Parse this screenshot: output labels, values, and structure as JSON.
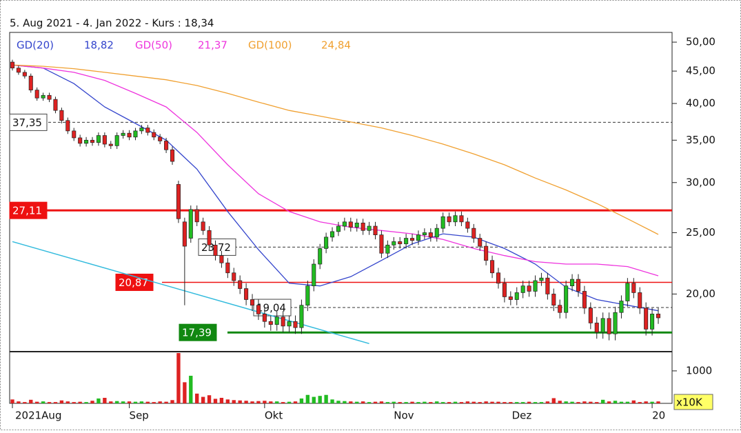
{
  "chart_data": {
    "type": "candlestick",
    "title": "5. Aug 2021 - 4. Jan 2022 - Kurs : 18,34",
    "log_scale": true,
    "categories": [
      "2021Aug",
      null,
      null,
      null,
      null,
      null,
      null,
      null,
      null,
      null,
      null,
      null,
      null,
      null,
      null,
      null,
      null,
      null,
      null,
      "Sep",
      null,
      null,
      null,
      null,
      null,
      null,
      null,
      null,
      null,
      null,
      null,
      null,
      null,
      null,
      null,
      null,
      null,
      null,
      null,
      null,
      null,
      "Okt",
      null,
      null,
      null,
      null,
      null,
      null,
      null,
      null,
      null,
      null,
      null,
      null,
      null,
      null,
      null,
      null,
      null,
      null,
      null,
      null,
      "Nov",
      null,
      null,
      null,
      null,
      null,
      null,
      null,
      null,
      null,
      null,
      null,
      null,
      null,
      null,
      null,
      null,
      null,
      null,
      null,
      null,
      null,
      null,
      null,
      null,
      null,
      null,
      null,
      null,
      null,
      null,
      null,
      null,
      null,
      null,
      null,
      null,
      null,
      null,
      null,
      null,
      null,
      "20",
      null
    ],
    "month_label_Dez": "Dez",
    "candles": {
      "up_color": "#22bb22",
      "down_color": "#dd2222",
      "open": [
        46.5,
        45.5,
        44.8,
        44.2,
        42.0,
        40.8,
        41.2,
        40.6,
        39.0,
        37.6,
        36.2,
        35.3,
        34.6,
        35.0,
        34.7,
        35.6,
        34.5,
        34.3,
        35.6,
        35.9,
        35.4,
        36.2,
        36.6,
        36.0,
        35.4,
        34.9,
        33.8,
        29.8,
        26.0,
        24.5,
        27.2,
        26.0,
        25.2,
        23.9,
        23.0,
        22.4,
        21.6,
        21.0,
        20.4,
        19.6,
        19.2,
        18.6,
        18.1,
        17.9,
        18.4,
        17.8,
        18.1,
        17.7,
        19.2,
        20.6,
        22.3,
        23.6,
        24.6,
        25.1,
        25.6,
        26.0,
        25.5,
        25.9,
        25.2,
        25.6,
        24.8,
        23.2,
        23.9,
        24.2,
        24.0,
        24.5,
        24.3,
        24.8,
        25.0,
        24.6,
        25.4,
        26.5,
        26.0,
        26.6,
        26.0,
        25.4,
        24.5,
        23.8,
        22.6,
        21.6,
        20.8,
        19.8,
        19.6,
        20.1,
        20.6,
        20.2,
        21.0,
        21.2,
        20.0,
        19.2,
        18.7,
        20.6,
        21.1,
        20.2,
        19.0,
        18.0,
        17.4,
        18.3,
        17.3,
        18.7,
        19.5,
        20.8,
        20.1,
        19.0,
        17.6,
        18.6
      ],
      "high": [
        46.9,
        45.9,
        45.2,
        44.6,
        42.4,
        41.6,
        41.6,
        41.0,
        39.4,
        38.0,
        36.6,
        35.7,
        35.4,
        35.4,
        36.0,
        36.0,
        34.9,
        36.0,
        36.3,
        36.3,
        36.6,
        37.0,
        37.0,
        36.4,
        35.8,
        35.3,
        34.2,
        30.2,
        26.4,
        27.6,
        27.6,
        26.4,
        25.6,
        24.3,
        23.4,
        22.8,
        22.0,
        21.4,
        20.8,
        20.0,
        19.6,
        19.0,
        18.5,
        18.8,
        18.8,
        18.5,
        18.5,
        19.6,
        21.0,
        22.7,
        24.0,
        25.0,
        25.5,
        26.0,
        26.4,
        26.4,
        26.3,
        26.3,
        26.0,
        26.0,
        25.2,
        24.3,
        24.6,
        24.6,
        24.9,
        24.9,
        25.2,
        25.4,
        25.4,
        25.8,
        26.9,
        26.9,
        27.0,
        27.0,
        26.4,
        25.8,
        24.9,
        24.2,
        23.0,
        22.0,
        21.2,
        20.2,
        20.5,
        21.0,
        21.0,
        21.4,
        21.6,
        21.6,
        20.4,
        19.6,
        21.0,
        21.5,
        21.5,
        20.6,
        19.4,
        18.4,
        18.7,
        18.7,
        19.1,
        19.9,
        21.2,
        21.2,
        20.5,
        19.4,
        19.0,
        19.0
      ],
      "low": [
        45.1,
        44.4,
        43.8,
        41.6,
        40.4,
        40.4,
        40.2,
        38.6,
        37.2,
        35.8,
        34.9,
        34.2,
        34.2,
        34.3,
        34.3,
        34.1,
        33.9,
        33.9,
        35.2,
        35.0,
        35.0,
        35.8,
        35.6,
        35.0,
        34.5,
        33.4,
        32.0,
        25.9,
        19.2,
        24.1,
        25.6,
        24.8,
        23.5,
        22.6,
        22.0,
        21.2,
        20.6,
        20.0,
        19.2,
        18.8,
        18.2,
        17.7,
        17.5,
        17.5,
        17.4,
        17.4,
        17.3,
        17.3,
        18.8,
        20.2,
        21.9,
        23.2,
        24.2,
        24.7,
        25.2,
        25.1,
        25.1,
        24.8,
        24.8,
        24.4,
        22.8,
        22.8,
        23.5,
        23.6,
        23.6,
        23.9,
        23.9,
        24.4,
        24.2,
        24.2,
        25.0,
        25.6,
        25.6,
        25.6,
        25.0,
        24.1,
        23.4,
        22.2,
        21.2,
        20.4,
        19.4,
        19.2,
        19.2,
        19.7,
        19.8,
        19.8,
        20.6,
        19.6,
        18.8,
        18.3,
        18.3,
        20.2,
        19.8,
        18.6,
        17.6,
        17.0,
        17.0,
        16.9,
        16.9,
        18.3,
        19.1,
        19.7,
        18.6,
        17.2,
        17.2,
        17.94
      ],
      "close": [
        45.5,
        44.8,
        44.2,
        42.0,
        40.8,
        41.2,
        40.6,
        39.0,
        37.6,
        36.2,
        35.3,
        34.6,
        35.0,
        34.7,
        35.6,
        34.5,
        34.3,
        35.6,
        35.9,
        35.4,
        36.2,
        36.6,
        36.0,
        35.4,
        34.9,
        33.8,
        32.4,
        26.3,
        23.8,
        27.2,
        26.0,
        25.2,
        23.9,
        23.0,
        22.4,
        21.6,
        21.0,
        20.4,
        19.6,
        19.2,
        18.6,
        18.1,
        17.9,
        18.4,
        17.8,
        18.1,
        17.7,
        19.2,
        20.6,
        22.3,
        23.6,
        24.6,
        25.1,
        25.6,
        26.0,
        25.5,
        25.9,
        25.2,
        25.6,
        24.8,
        23.2,
        23.9,
        24.2,
        24.0,
        24.5,
        24.3,
        24.8,
        25.0,
        24.6,
        25.4,
        26.5,
        26.0,
        26.6,
        26.0,
        25.4,
        24.5,
        23.8,
        22.6,
        21.6,
        20.8,
        19.8,
        19.6,
        20.1,
        20.6,
        20.2,
        21.0,
        21.2,
        20.0,
        19.2,
        18.7,
        20.6,
        21.1,
        20.2,
        19.0,
        18.0,
        17.4,
        18.3,
        17.3,
        18.7,
        19.5,
        20.8,
        20.1,
        19.0,
        17.6,
        18.6,
        18.34
      ]
    },
    "series": [
      {
        "name": "GD(20)",
        "value_label": "18,82",
        "color": "#3344cc",
        "x": [
          0,
          5,
          10,
          15,
          20,
          25,
          30,
          35,
          40,
          45,
          50,
          55,
          60,
          65,
          70,
          75,
          80,
          85,
          90,
          95,
          100,
          105
        ],
        "values": [
          46,
          45.5,
          43,
          39.5,
          37.2,
          35,
          31.5,
          27,
          23.5,
          20.8,
          20.6,
          21.3,
          22.6,
          24,
          24.9,
          24.6,
          23.6,
          22.3,
          20.5,
          19.6,
          19.2,
          18.82
        ]
      },
      {
        "name": "GD(50)",
        "value_label": "21,37",
        "color": "#ee33dd",
        "x": [
          0,
          5,
          10,
          15,
          20,
          25,
          30,
          35,
          40,
          45,
          50,
          55,
          60,
          65,
          70,
          75,
          80,
          85,
          90,
          95,
          100,
          105
        ],
        "values": [
          46,
          45.5,
          44.8,
          43.5,
          41.5,
          39.5,
          36,
          32,
          28.8,
          27,
          26,
          25.5,
          25.2,
          24.9,
          24.4,
          23.6,
          23,
          22.5,
          22.3,
          22.3,
          22.1,
          21.37
        ]
      },
      {
        "name": "GD(100)",
        "value_label": "24,84",
        "color": "#f0a030",
        "x": [
          0,
          5,
          10,
          15,
          20,
          25,
          30,
          35,
          40,
          45,
          50,
          55,
          60,
          65,
          70,
          75,
          80,
          85,
          90,
          95,
          100,
          105
        ],
        "values": [
          46,
          45.8,
          45.4,
          44.8,
          44.2,
          43.6,
          42.7,
          41.5,
          40.2,
          39,
          38.2,
          37.4,
          36.6,
          35.6,
          34.5,
          33.3,
          32,
          30.5,
          29.2,
          27.8,
          26.3,
          24.84
        ]
      }
    ],
    "trendline": {
      "color": "#33bbdd",
      "x": [
        0,
        58
      ],
      "values": [
        24.2,
        16.7
      ]
    },
    "levels": [
      {
        "value": 37.35,
        "label": "37,35",
        "color": "#333333",
        "style": "dashed"
      },
      {
        "value": 27.11,
        "label": "27,11",
        "color": "#ee1111",
        "style": "thick"
      },
      {
        "value": 23.72,
        "label": "23,72",
        "color": "#333333",
        "style": "dashed"
      },
      {
        "value": 20.87,
        "label": "20,87",
        "color": "#ee1111",
        "style": "thin"
      },
      {
        "value": 19.04,
        "label": "19,04",
        "color": "#333333",
        "style": "dashed"
      },
      {
        "value": 17.39,
        "label": "17,39",
        "color": "#118811",
        "style": "thick"
      }
    ],
    "ylim": [
      16.3,
      51.8
    ],
    "yticks": [
      {
        "value": 50,
        "label": "50,00"
      },
      {
        "value": 45,
        "label": "45,00"
      },
      {
        "value": 40,
        "label": "40,00"
      },
      {
        "value": 35,
        "label": "35,00"
      },
      {
        "value": 30,
        "label": "30,00"
      },
      {
        "value": 25,
        "label": "25,00"
      },
      {
        "value": 20,
        "label": "20,00"
      }
    ],
    "volume": {
      "unit_label": "x10K",
      "ylim": [
        0,
        1550
      ],
      "yticks": [
        1000
      ],
      "values": [
        120,
        60,
        40,
        110,
        50,
        60,
        40,
        40,
        90,
        60,
        40,
        50,
        40,
        80,
        150,
        170,
        60,
        70,
        60,
        60,
        50,
        60,
        50,
        40,
        60,
        50,
        100,
        1550,
        650,
        850,
        300,
        200,
        250,
        140,
        170,
        120,
        100,
        90,
        80,
        60,
        70,
        80,
        60,
        60,
        40,
        50,
        60,
        150,
        260,
        200,
        230,
        260,
        120,
        80,
        70,
        60,
        50,
        60,
        40,
        50,
        60,
        40,
        50,
        40,
        40,
        50,
        40,
        50,
        40,
        60,
        40,
        40,
        50,
        40,
        60,
        50,
        40,
        60,
        50,
        50,
        40,
        40,
        40,
        40,
        50,
        40,
        40,
        60,
        160,
        80,
        60,
        50,
        40,
        60,
        50,
        40,
        110,
        60,
        80,
        50,
        50,
        90,
        40,
        60,
        50,
        60
      ]
    }
  }
}
